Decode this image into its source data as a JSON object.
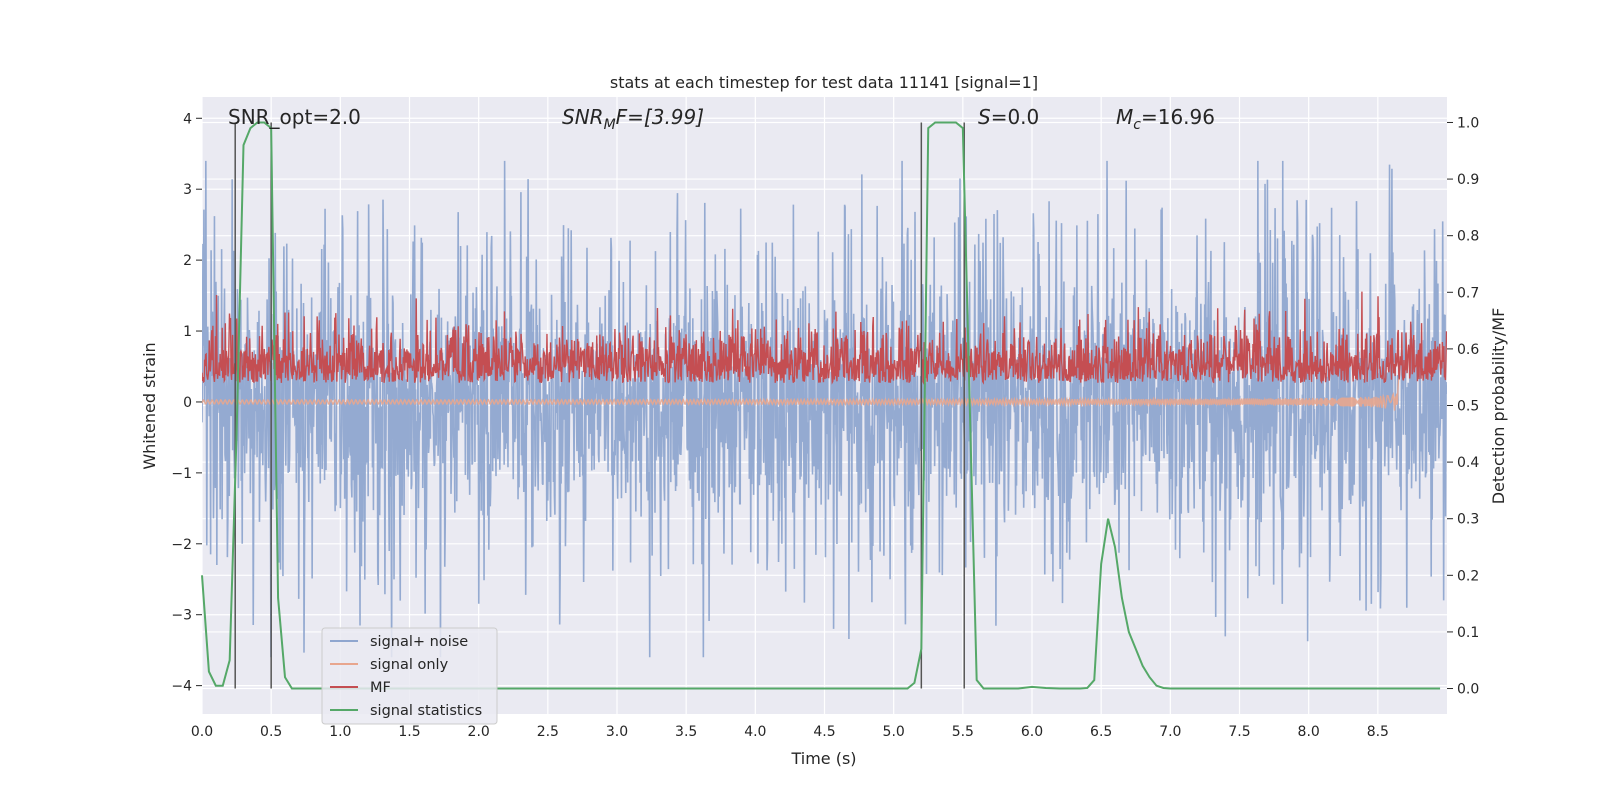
{
  "chart_data": {
    "type": "line",
    "title": "stats at each timestep for test data 11141 [signal=1]",
    "xlabel": "Time (s)",
    "ylabel_left": "Whitened strain",
    "ylabel_right": "Detection probability/MF",
    "xlim": [
      0.0,
      9.0
    ],
    "ylim_left": [
      -4.4,
      4.3
    ],
    "ylim_right": [
      -0.045,
      1.045
    ],
    "x_ticks": [
      "0.0",
      "0.5",
      "1.0",
      "1.5",
      "2.0",
      "2.5",
      "3.0",
      "3.5",
      "4.0",
      "4.5",
      "5.0",
      "5.5",
      "6.0",
      "6.5",
      "7.0",
      "7.5",
      "8.0",
      "8.5"
    ],
    "y_ticks_left": [
      "4",
      "3",
      "2",
      "1",
      "0",
      "−1",
      "−2",
      "−3",
      "−4"
    ],
    "y_ticks_right": [
      "1.0",
      "0.9",
      "0.8",
      "0.7",
      "0.6",
      "0.5",
      "0.4",
      "0.3",
      "0.2",
      "0.1",
      "0.0"
    ],
    "grid": true,
    "legend_position": "lower-left",
    "annotations": {
      "snr_opt": "SNR_opt=2.0",
      "snr_mf_main": "SNR",
      "snr_mf_sub": "M",
      "snr_mf_rest": "F=[3.99]",
      "s_main": "S",
      "s_rest": "=0.0",
      "mc_main": "M",
      "mc_sub": "c",
      "mc_rest": "=16.96"
    },
    "vertical_markers_x": [
      0.24,
      0.5,
      5.2,
      5.51
    ],
    "series": [
      {
        "name": "signal+ noise",
        "color": "#8fa6cf",
        "description_range": [
          -3.6,
          3.4
        ],
        "approx_amplitude_std": 1.0
      },
      {
        "name": "signal only",
        "color": "#e8a68e",
        "chirp_end_x": 8.65,
        "chirp_min_y": -0.45
      },
      {
        "name": "MF",
        "color": "#c44e52",
        "axis": "right",
        "approx_level": 0.55,
        "approx_spread": 0.05
      },
      {
        "name": "signal statistics",
        "color": "#55a868",
        "axis": "right",
        "x": [
          0.0,
          0.05,
          0.1,
          0.15,
          0.2,
          0.25,
          0.3,
          0.35,
          0.4,
          0.45,
          0.5,
          0.55,
          0.6,
          0.65,
          0.7,
          0.8,
          0.9,
          1.0,
          2.0,
          3.0,
          4.0,
          5.0,
          5.1,
          5.15,
          5.2,
          5.25,
          5.3,
          5.35,
          5.4,
          5.45,
          5.5,
          5.55,
          5.6,
          5.65,
          5.7,
          5.8,
          5.9,
          6.0,
          6.1,
          6.2,
          6.3,
          6.35,
          6.4,
          6.45,
          6.5,
          6.55,
          6.6,
          6.65,
          6.7,
          6.75,
          6.8,
          6.85,
          6.9,
          6.95,
          7.0,
          7.5,
          8.0,
          8.5,
          8.95
        ],
        "y": [
          0.2,
          0.03,
          0.005,
          0.005,
          0.05,
          0.45,
          0.96,
          0.99,
          1.0,
          1.0,
          0.99,
          0.16,
          0.02,
          0.0,
          0.0,
          0.0,
          0.0,
          0.0,
          0.0,
          0.0,
          0.0,
          0.0,
          0.0,
          0.01,
          0.07,
          0.99,
          1.0,
          1.0,
          1.0,
          1.0,
          0.99,
          0.5,
          0.015,
          0.0,
          0.0,
          0.0,
          0.0,
          0.003,
          0.001,
          0.0,
          0.0,
          0.0,
          0.001,
          0.015,
          0.22,
          0.3,
          0.25,
          0.16,
          0.1,
          0.07,
          0.04,
          0.02,
          0.005,
          0.001,
          0.0,
          0.0,
          0.0,
          0.0,
          0.0
        ]
      }
    ]
  }
}
